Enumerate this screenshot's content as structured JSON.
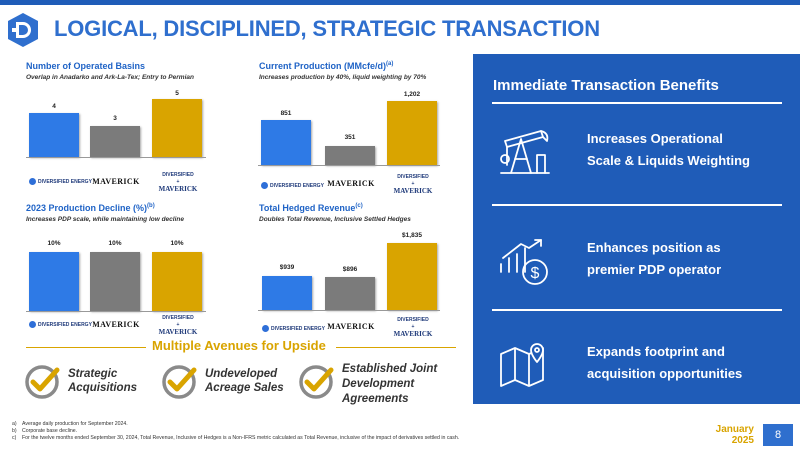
{
  "page": {
    "title": "LOGICAL, DISCIPLINED, STRATEGIC TRANSACTION",
    "date_line1": "January",
    "date_line2": "2025",
    "page_number": "8"
  },
  "charts": [
    {
      "title": "Number of Operated Basins",
      "superscript": "",
      "subtitle": "Overlap in Anadarko and Ark-La-Tex; Entry to Permian",
      "labels": [
        "4",
        "3",
        "5"
      ]
    },
    {
      "title": "Current Production (MMcfe/d)",
      "superscript": "(a)",
      "subtitle": "Increases production by 40%, liquid weighting by 70%",
      "labels": [
        "851",
        "351",
        "1,202"
      ]
    },
    {
      "title": "2023 Production Decline (%)",
      "superscript": "(b)",
      "subtitle": "Increases PDP scale, while maintaining low decline",
      "labels": [
        "10%",
        "10%",
        "10%"
      ]
    },
    {
      "title": "Total Hedged Revenue",
      "superscript": "(c)",
      "subtitle": "Doubles Total Revenue, Inclusive Settled Hedges",
      "labels": [
        "$939",
        "$896",
        "$1,835"
      ]
    }
  ],
  "chart_data": [
    {
      "type": "bar",
      "title": "Number of Operated Basins",
      "categories": [
        "DIVERSIFIED ENERGY",
        "MAVERICK",
        "DIVERSIFIED + MAVERICK"
      ],
      "values": [
        4,
        3,
        5
      ]
    },
    {
      "type": "bar",
      "title": "Current Production (MMcfe/d)",
      "categories": [
        "DIVERSIFIED ENERGY",
        "MAVERICK",
        "DIVERSIFIED + MAVERICK"
      ],
      "values": [
        851,
        351,
        1202
      ]
    },
    {
      "type": "bar",
      "title": "2023 Production Decline (%)",
      "categories": [
        "DIVERSIFIED ENERGY",
        "MAVERICK",
        "DIVERSIFIED + MAVERICK"
      ],
      "values": [
        10,
        10,
        10
      ]
    },
    {
      "type": "bar",
      "title": "Total Hedged Revenue",
      "categories": [
        "DIVERSIFIED ENERGY",
        "MAVERICK",
        "DIVERSIFIED + MAVERICK"
      ],
      "values": [
        939,
        896,
        1835
      ]
    }
  ],
  "logos": {
    "diversified": "DIVERSIFIED ENERGY",
    "maverick": "MAVERICK",
    "combined_top": "DIVERSIFIED",
    "combined_plus": "+",
    "combined_bottom": "MAVERICK"
  },
  "avenues": {
    "heading": "Multiple Avenues for Upside",
    "items": [
      {
        "line1": "Strategic",
        "line2": "Acquisitions",
        "line3": ""
      },
      {
        "line1": "Undeveloped",
        "line2": "Acreage Sales",
        "line3": ""
      },
      {
        "line1": "Established Joint",
        "line2": "Development",
        "line3": "Agreements"
      }
    ]
  },
  "benefits": {
    "heading": "Immediate Transaction Benefits",
    "items": [
      {
        "icon": "oil-pump-jack-icon",
        "line1": "Increases Operational",
        "line2": "Scale & Liquids Weighting"
      },
      {
        "icon": "growth-dollar-icon",
        "line1": "Enhances position as",
        "line2": "premier PDP operator"
      },
      {
        "icon": "map-pin-icon",
        "line1": "Expands footprint and",
        "line2": "acquisition opportunities"
      }
    ]
  },
  "footnotes": [
    {
      "mark": "a)",
      "text": "Average daily production for September 2024."
    },
    {
      "mark": "b)",
      "text": "Corporate base decline."
    },
    {
      "mark": "c)",
      "text": "For the twelve months ended September 30, 2024, Total Revenue, Inclusive of Hedges is a Non-IFRS metric calculated as Total Revenue, inclusive of the impact of derivatives settled in cash."
    }
  ],
  "colors": {
    "brand_blue": "#1f5cb8",
    "title_blue": "#2f6fce",
    "gold": "#d9a400",
    "grey_bar": "#7b7b7b",
    "bar_blue": "#2e7ae6"
  }
}
